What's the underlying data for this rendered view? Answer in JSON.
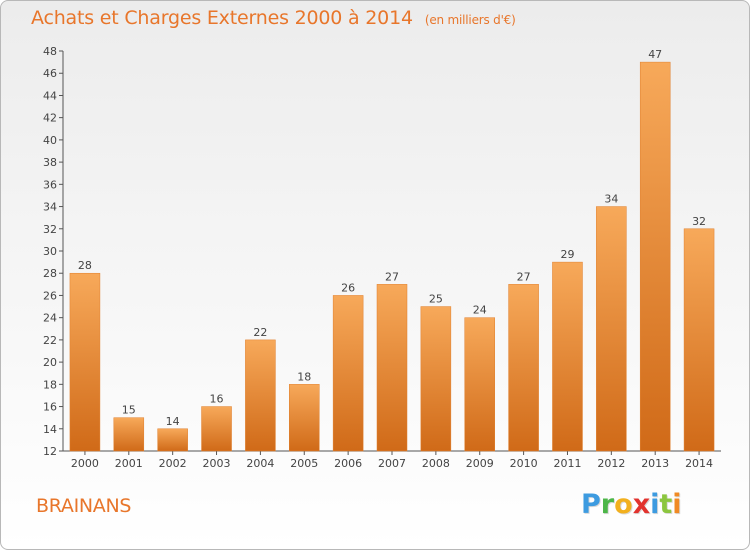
{
  "header": {
    "title": "Achats et Charges Externes 2000 à 2014",
    "unit": "(en milliers d'€)"
  },
  "footer": {
    "commune": "BRAINANS",
    "logo_letters": [
      "P",
      "r",
      "o",
      "x",
      "i",
      "t",
      "i"
    ]
  },
  "colors": {
    "accent": "#e8762b",
    "bar_light": "#f7a95a",
    "bar_dark": "#d06a18"
  },
  "chart_data": {
    "type": "bar",
    "title": "Achats et Charges Externes 2000 à 2014",
    "subtitle": "(en milliers d'€)",
    "categories": [
      "2000",
      "2001",
      "2002",
      "2003",
      "2004",
      "2005",
      "2006",
      "2007",
      "2008",
      "2009",
      "2010",
      "2011",
      "2012",
      "2013",
      "2014"
    ],
    "values": [
      28,
      15,
      14,
      16,
      22,
      18,
      26,
      27,
      25,
      24,
      27,
      29,
      34,
      47,
      32
    ],
    "ylim": [
      12,
      48
    ],
    "yticks": [
      12,
      14,
      16,
      18,
      20,
      22,
      24,
      26,
      28,
      30,
      32,
      34,
      36,
      38,
      40,
      42,
      44,
      46,
      48
    ],
    "grid": false,
    "legend": "none"
  }
}
